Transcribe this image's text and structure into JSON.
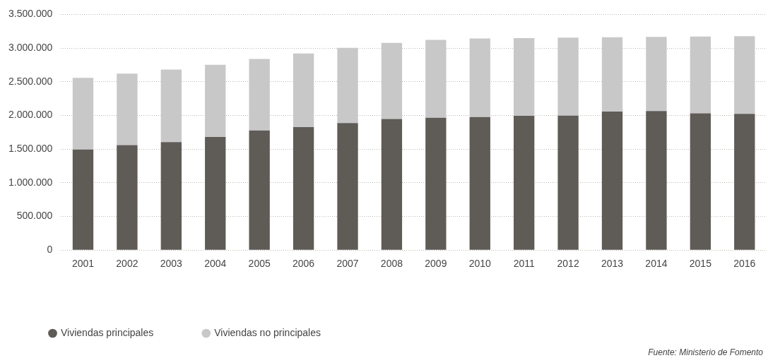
{
  "chart_data": {
    "type": "bar",
    "stacked": true,
    "categories": [
      "2001",
      "2002",
      "2003",
      "2004",
      "2005",
      "2006",
      "2007",
      "2008",
      "2009",
      "2010",
      "2011",
      "2012",
      "2013",
      "2014",
      "2015",
      "2016"
    ],
    "series": [
      {
        "name": "Viviendas principales",
        "color": "#5f5b57",
        "values": [
          1494000,
          1560000,
          1605000,
          1679000,
          1776000,
          1827000,
          1886000,
          1946000,
          1966000,
          1977000,
          1994000,
          1997000,
          2057000,
          2065000,
          2031000,
          2023000
        ]
      },
      {
        "name": "Viviendas no principales",
        "color": "#c8c8c8",
        "values": [
          1063000,
          1062000,
          1077000,
          1074000,
          1062000,
          1093000,
          1117000,
          1131000,
          1156000,
          1165000,
          1154000,
          1159000,
          1105000,
          1100000,
          1139000,
          1153000
        ]
      }
    ],
    "ylim": [
      0,
      3500000
    ],
    "yticks": [
      0,
      {
        "value": 500000,
        "label": "500.000"
      },
      {
        "value": 1000000,
        "label": "1.000.000"
      },
      {
        "value": 1500000,
        "label": "1.500.000"
      },
      {
        "value": 2000000,
        "label": "2.000.000"
      },
      {
        "value": 2500000,
        "label": "2.500.000"
      },
      {
        "value": 3000000,
        "label": "3.000.000"
      },
      {
        "value": 3500000,
        "label": "3.500.000"
      }
    ],
    "grid": "y",
    "legend": "bottom left",
    "annotations": [
      "Fuente: Ministerio de Fomento"
    ]
  }
}
